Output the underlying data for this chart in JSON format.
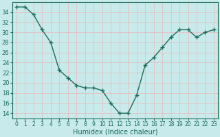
{
  "x": [
    0,
    1,
    2,
    3,
    4,
    5,
    6,
    7,
    8,
    9,
    10,
    11,
    12,
    13,
    14,
    15,
    16,
    17,
    18,
    19,
    20,
    21,
    22,
    23
  ],
  "y": [
    35,
    35,
    33.5,
    30.5,
    28,
    22.5,
    21,
    19.5,
    19,
    19,
    18.5,
    16,
    14,
    14,
    17.5,
    23.5,
    25,
    27,
    29,
    30.5,
    30.5,
    29,
    30,
    30.5
  ],
  "line_color": "#1a6b5a",
  "marker": "+",
  "marker_size": 4,
  "marker_linewidth": 1.0,
  "bg_color": "#c8eaea",
  "grid_color": "#b0d8d8",
  "xlabel": "Humidex (Indice chaleur)",
  "xlim": [
    -0.5,
    23.5
  ],
  "ylim": [
    13,
    36
  ],
  "yticks": [
    14,
    16,
    18,
    20,
    22,
    24,
    26,
    28,
    30,
    32,
    34
  ],
  "xticks": [
    0,
    1,
    2,
    3,
    4,
    5,
    6,
    7,
    8,
    9,
    10,
    11,
    12,
    13,
    14,
    15,
    16,
    17,
    18,
    19,
    20,
    21,
    22,
    23
  ],
  "tick_color": "#1a6b5a",
  "tick_fontsize": 6,
  "xlabel_fontsize": 7,
  "axis_color": "#1a6b5a",
  "linewidth": 1.0,
  "linestyle": "-"
}
